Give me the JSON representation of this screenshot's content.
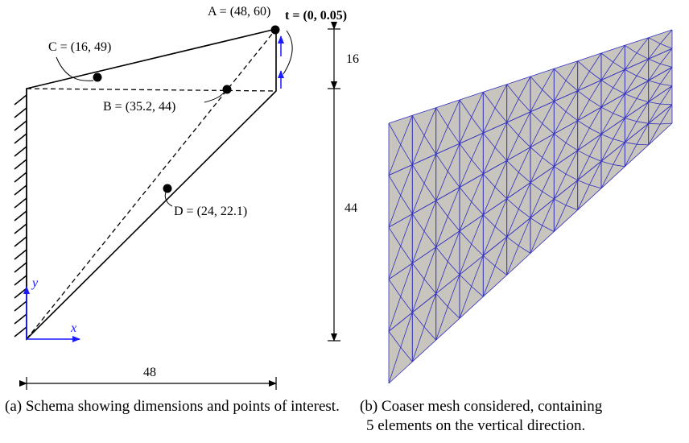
{
  "schema": {
    "points": {
      "A": "A = (48, 60)",
      "B": "B = (35.2, 44)",
      "C": "C = (16, 49)",
      "D": "D = (24, 22.1)"
    },
    "traction": "t = (0, 0.05)",
    "axes": {
      "x": "x",
      "y": "y"
    },
    "dimensions": {
      "width": "48",
      "top_height": "16",
      "bottom_height": "44"
    }
  },
  "mesh": {
    "vertical_elements": 5,
    "horizontal_elements": 12,
    "fill_color": "#c8c4be",
    "edge_color": "#3030c0"
  },
  "captions": {
    "a": "(a) Schema showing dimensions and points of interest.",
    "b_line1": "(b) Coaser mesh considered, containing",
    "b_line2": "5 elements on the vertical direction."
  }
}
